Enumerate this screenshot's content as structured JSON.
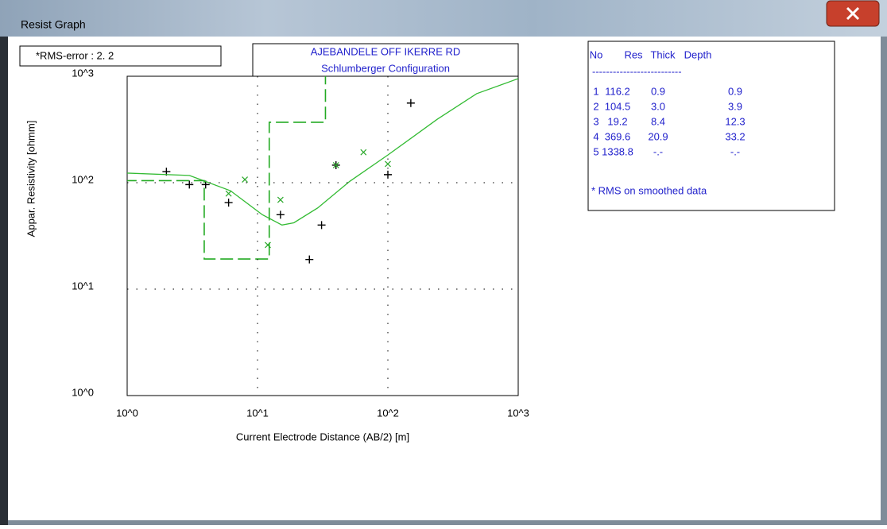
{
  "window": {
    "title": "Resist Graph"
  },
  "rms_label": "*RMS-error :  2. 2",
  "chart_data": {
    "type": "scatter",
    "title": "AJEBANDELE OFF IKERRE RD",
    "subtitle": "Schlumberger Configuration",
    "x_label": "Current Electrode Distance (AB/2) [m]",
    "y_label": "Appar. Resistivity [ohmm]",
    "log_x": true,
    "log_y": true,
    "grid": true,
    "xlim": [
      1,
      1000
    ],
    "ylim": [
      1,
      1000
    ],
    "xticks": [
      {
        "value": 1,
        "label": "10^0"
      },
      {
        "value": 10,
        "label": "10^1"
      },
      {
        "value": 100,
        "label": "10^2"
      },
      {
        "value": 1000,
        "label": "10^3"
      }
    ],
    "yticks": [
      {
        "value": 1,
        "label": "10^0"
      },
      {
        "value": 10,
        "label": "10^1"
      },
      {
        "value": 100,
        "label": "10^2"
      },
      {
        "value": 1000,
        "label": "10^3"
      }
    ],
    "series": [
      {
        "marker": "plus",
        "color": "#000000",
        "x": [
          2,
          3,
          4,
          6,
          15,
          25,
          31,
          40,
          100,
          150
        ],
        "values": [
          127,
          96,
          96,
          65,
          50,
          19,
          40,
          146,
          119,
          560
        ]
      },
      {
        "marker": "cross",
        "color": "#2aa82a",
        "x": [
          6,
          8,
          12,
          15,
          40,
          65,
          100
        ],
        "values": [
          79,
          107,
          26,
          69,
          146,
          193,
          150
        ]
      },
      {
        "marker": "line",
        "color": "#33bb33",
        "x": [
          1,
          3,
          6.2,
          10.9,
          15.4,
          19,
          29,
          51,
          100,
          239,
          480,
          1000
        ],
        "values": [
          123,
          117,
          84,
          50,
          40,
          42,
          58,
          103,
          182,
          394,
          686,
          950
        ]
      },
      {
        "marker": "step",
        "color": "#22aa22",
        "x": [
          0,
          0.9,
          3.9,
          12.3,
          33.2
        ],
        "values": [
          116.2,
          104.5,
          19.2,
          369.6,
          1338.8
        ]
      }
    ]
  },
  "table": {
    "header": [
      "No",
      "Res",
      "Thick",
      "Depth"
    ],
    "rule": "--------------------------",
    "rows": [
      [
        "1",
        "116.2",
        "0.9",
        "0.9"
      ],
      [
        "2",
        "104.5",
        "3.0",
        "3.9"
      ],
      [
        "3",
        "19.2",
        "8.4",
        "12.3"
      ],
      [
        "4",
        "369.6",
        "20.9",
        "33.2"
      ],
      [
        "5",
        "1338.8",
        "-.-",
        "-.-"
      ]
    ],
    "note": "* RMS on smoothed data"
  }
}
